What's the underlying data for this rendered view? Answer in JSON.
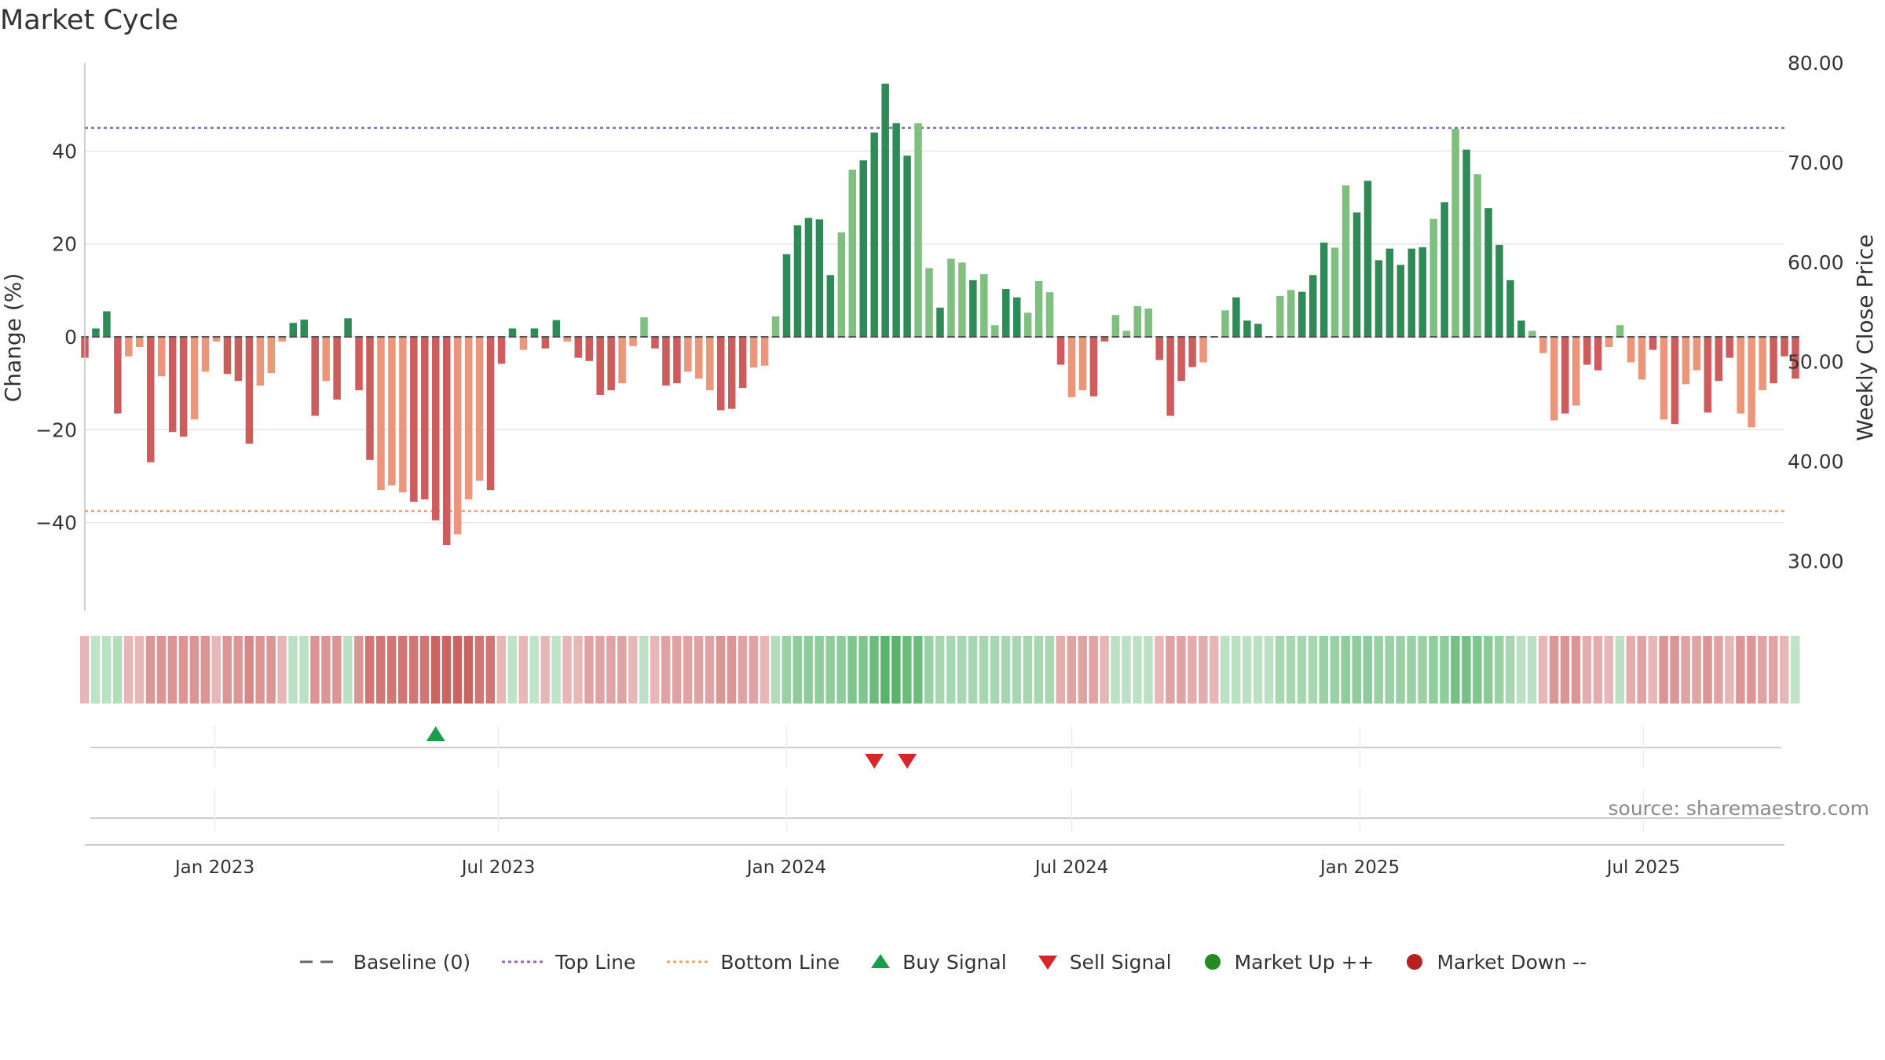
{
  "title": "Market Cycle",
  "source": "source: sharemaestro.com",
  "colors": {
    "strong_up": "#2e8b57",
    "weak_up": "#7fbf7f",
    "strong_down": "#cd5c5c",
    "weak_down": "#e9967a",
    "top_line": "#9467bd",
    "bottom_line": "#f4a460",
    "baseline": "#666666",
    "buy": "#1a9e4a",
    "sell": "#d62728",
    "market_up": "#228b22",
    "market_down": "#b22222"
  },
  "legend": [
    {
      "label": "Baseline (0)",
      "kind": "dash",
      "color": "#666666"
    },
    {
      "label": "Top Line",
      "kind": "dot",
      "color": "#9467bd"
    },
    {
      "label": "Bottom Line",
      "kind": "dot",
      "color": "#f4a460"
    },
    {
      "label": "Buy Signal",
      "kind": "tri-up",
      "color": "#1a9e4a"
    },
    {
      "label": "Sell Signal",
      "kind": "tri-down",
      "color": "#d62728"
    },
    {
      "label": "Market Up ++",
      "kind": "circle",
      "color": "#228b22"
    },
    {
      "label": "Market Down --",
      "kind": "circle",
      "color": "#b22222"
    }
  ],
  "chart_data": {
    "type": "bar",
    "title": "Market Cycle",
    "ylabel": "Change (%)",
    "y2label": "Weekly Close Price",
    "ylim": [
      -59,
      59
    ],
    "y_ticks": [
      -40,
      -20,
      0,
      20,
      40
    ],
    "y2lim": [
      25.0,
      80.0
    ],
    "y2_ticks": [
      "30.00",
      "40.00",
      "50.00",
      "60.00",
      "70.00",
      "80.00"
    ],
    "x_start": "2022-10-10",
    "x_end": "2025-09-29",
    "x_ticks": [
      {
        "date": "2023-01-01",
        "label": "Jan 2023"
      },
      {
        "date": "2023-07-01",
        "label": "Jul 2023"
      },
      {
        "date": "2024-01-01",
        "label": "Jan 2024"
      },
      {
        "date": "2024-07-01",
        "label": "Jul 2024"
      },
      {
        "date": "2025-01-01",
        "label": "Jan 2025"
      },
      {
        "date": "2025-07-01",
        "label": "Jul 2025"
      }
    ],
    "top_line": 45,
    "bottom_line": -37.5,
    "grid": true,
    "legend_position": "bottom",
    "bars_start": "2022-10-10",
    "bars_interval_days": 7,
    "bars": [
      -4.5,
      1.8,
      5.5,
      -16.5,
      -4.2,
      -2.2,
      -27,
      -8.5,
      -20.5,
      -21.5,
      -17.8,
      -7.5,
      -1,
      -8,
      -9.5,
      -23,
      -10.5,
      -7.8,
      -1,
      3,
      3.7,
      -17,
      -9.5,
      -13.5,
      4,
      -11.5,
      -26.5,
      -33,
      -32,
      -33.5,
      -35.5,
      -35,
      -39.5,
      -44.8,
      -42.5,
      -35,
      -31,
      -33,
      -5.8,
      1.8,
      -2.8,
      1.8,
      -2.5,
      3.6,
      -1,
      -4.5,
      -5.2,
      -12.5,
      -11.5,
      -10,
      -2,
      4.2,
      -2.5,
      -10.5,
      -10,
      -7.5,
      -9,
      -11.5,
      -15.8,
      -15.5,
      -11,
      -6.6,
      -6.2,
      4.4,
      17.8,
      24,
      25.6,
      25.3,
      13.3,
      22.5,
      36,
      38,
      44,
      54.5,
      46,
      39,
      46,
      14.8,
      6.3,
      16.8,
      16,
      12.2,
      13.5,
      2.5,
      10.3,
      8.5,
      5.2,
      12,
      9.6,
      -6,
      -13,
      -11.5,
      -12.8,
      -1,
      4.7,
      1.3,
      6.6,
      6.1,
      -5,
      -17,
      -9.5,
      -6.5,
      -5.5,
      0,
      5.7,
      8.5,
      3.5,
      2.8,
      0,
      8.8,
      10.1,
      9.7,
      13.3,
      20.3,
      19.2,
      32.6,
      26.8,
      33.6,
      16.5,
      19,
      15.5,
      19,
      19.3,
      25.4,
      29,
      44.8,
      40.3,
      35,
      27.7,
      19.8,
      12.2,
      3.5,
      1.3,
      -3.5,
      -18,
      -16.5,
      -14.8,
      -6,
      -7.2,
      -2.2,
      2.5,
      -5.5,
      -9.2,
      -2.8,
      -17.8,
      -18.8,
      -10.2,
      -7.2,
      -16.3,
      -9.5,
      -4.5,
      -16.5,
      -19.5,
      -11.5,
      -10,
      -4.2,
      -9
    ],
    "bar_shades": "SSSSWWSWSSWWWSSSWWWSSSWSSSSWWWSSSSWWWSSSWSSSWSSSSWWWSSSWWWSSSWWWSSSSSWWSSSSSWWSWWSWWSSWWWSWWSSWWWWSSSSWWWSSSWWWSSSWWSSSSSSSWSWSWSSSSWWWSWSSWWWWSWSWWSSSWWWSSSWWSWWS",
    "phase_values": [
      -0.8,
      0.5,
      0.6,
      0.8,
      -0.8,
      -0.8,
      -1.5,
      -1.5,
      -1.5,
      -1.5,
      -1.5,
      -1.5,
      -0.8,
      -1.5,
      -1.5,
      -1.8,
      -1.5,
      -1.5,
      -0.8,
      0.6,
      0.6,
      -1.5,
      -1.5,
      -1.5,
      0.6,
      -1.5,
      -2.2,
      -2.2,
      -2.2,
      -2.2,
      -2.2,
      -2.2,
      -2.6,
      -2.6,
      -2.6,
      -2.6,
      -2.2,
      -2.2,
      -0.8,
      0.5,
      -0.8,
      0.5,
      -0.8,
      0.5,
      -0.8,
      -0.8,
      -1.2,
      -1.2,
      -1.2,
      -1.2,
      -0.8,
      0.6,
      -0.8,
      -1.2,
      -1.2,
      -1.2,
      -1.2,
      -1.2,
      -1.5,
      -1.5,
      -1.2,
      -1.2,
      -0.8,
      0.8,
      1.3,
      1.5,
      1.5,
      1.5,
      1.5,
      1.5,
      1.8,
      1.8,
      2.2,
      2.6,
      2.6,
      2.2,
      2.2,
      1.3,
      1,
      1,
      1,
      1,
      1,
      1,
      1,
      1,
      1,
      1,
      1,
      -1,
      -1.2,
      -1.2,
      -1.2,
      -0.8,
      0.6,
      0.6,
      0.6,
      0.6,
      -0.8,
      -1.2,
      -1.2,
      -1,
      -1,
      -0.8,
      0.6,
      0.6,
      0.6,
      0.6,
      0.6,
      1,
      1,
      1,
      1,
      1.3,
      1.3,
      1.5,
      1.5,
      1.5,
      1.3,
      1.3,
      1.3,
      1.3,
      1.3,
      1.5,
      1.5,
      2,
      2,
      1.8,
      1.6,
      1.3,
      1,
      0.6,
      0.6,
      -0.8,
      -1.5,
      -1.5,
      -1.5,
      -1,
      -1,
      -0.8,
      0.6,
      -1,
      -1.2,
      -0.8,
      -1.5,
      -1.5,
      -1.2,
      -1.2,
      -1.5,
      -1.2,
      -0.8,
      -1.5,
      -1.5,
      -1.2,
      -1.2,
      -0.8,
      0.5
    ],
    "signals": {
      "buy": [
        "2023-05-22"
      ],
      "sell": [
        "2024-02-26",
        "2024-03-18"
      ]
    }
  }
}
